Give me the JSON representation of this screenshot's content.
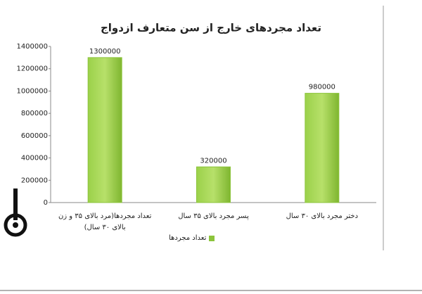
{
  "chart_data": {
    "type": "bar",
    "title": "تعداد مجردهای خارج از سن متعارف ازدواج",
    "categories": [
      "تعداد مجردها(مرد بالای ۳۵ و زن بالای ۳۰ سال)",
      "پسر مجرد بالای ۳۵ سال",
      "دختر مجرد بالای ۳۰ سال"
    ],
    "series": [
      {
        "name": "تعداد مجردها",
        "color": "#8cc43c",
        "values": [
          1300000,
          320000,
          980000
        ]
      }
    ],
    "ylim": [
      0,
      1400000
    ],
    "yticks": [
      0,
      200000,
      400000,
      600000,
      800000,
      1000000,
      1200000,
      1400000
    ],
    "grid": false
  }
}
